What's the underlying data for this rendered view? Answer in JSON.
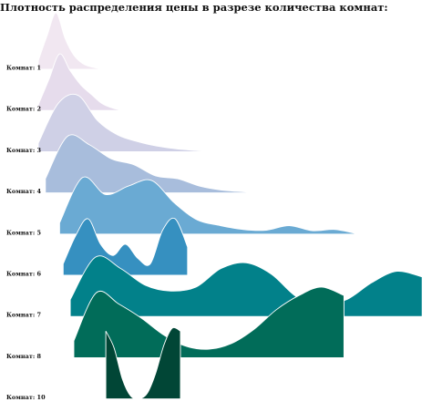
{
  "chart_data": {
    "type": "area",
    "title": "Плотность распределения цены в разрезе количества комнат:",
    "xlabel": "",
    "ylabel": "",
    "grid": false,
    "legend": "none",
    "series": [
      {
        "name": "Комнат: 1",
        "color": "#f1e7f1",
        "x_range": [
          0.0,
          1.0
        ],
        "density": [
          0.15,
          0.6,
          1.0,
          0.55,
          0.25,
          0.1,
          0.04,
          0.01,
          0.0
        ]
      },
      {
        "name": "Комнат: 2",
        "color": "#e6dcec",
        "x_range": [
          0.0,
          1.2
        ],
        "density": [
          0.1,
          0.55,
          1.0,
          0.7,
          0.45,
          0.28,
          0.12,
          0.04,
          0.0
        ]
      },
      {
        "name": "Комнат: 3",
        "color": "#cfd0e6",
        "x_range": [
          0.0,
          2.5
        ],
        "density": [
          0.15,
          0.85,
          1.0,
          0.55,
          0.3,
          0.18,
          0.1,
          0.05,
          0.02,
          0.0
        ]
      },
      {
        "name": "Комнат: 4",
        "color": "#a8bddc",
        "x_range": [
          0.1,
          3.2
        ],
        "density": [
          0.25,
          1.0,
          0.85,
          0.6,
          0.5,
          0.3,
          0.25,
          0.12,
          0.05,
          0.02,
          0.0
        ]
      },
      {
        "name": "Комнат: 5",
        "color": "#6aaad3",
        "x_range": [
          0.3,
          4.5
        ],
        "density": [
          0.2,
          1.0,
          0.7,
          0.85,
          0.95,
          0.55,
          0.25,
          0.15,
          0.08,
          0.07,
          0.15,
          0.06,
          0.08,
          0.0
        ]
      },
      {
        "name": "Комнат: 6",
        "color": "#3690c0",
        "x_range": [
          0.35,
          2.1
        ],
        "density": [
          0.2,
          0.7,
          1.0,
          0.55,
          0.35,
          0.55,
          0.3,
          0.2,
          0.8,
          1.0,
          0.5
        ]
      },
      {
        "name": "Комнат: 7",
        "color": "#02818a",
        "x_range": [
          0.45,
          5.4
        ],
        "density": [
          0.3,
          1.05,
          0.85,
          0.55,
          0.45,
          0.52,
          0.85,
          0.95,
          0.75,
          0.35,
          0.2,
          0.3,
          0.6,
          0.8,
          0.7
        ]
      },
      {
        "name": "Комнат: 8",
        "color": "#016c59",
        "x_range": [
          0.5,
          4.3
        ],
        "density": [
          0.3,
          1.15,
          0.95,
          0.7,
          0.4,
          0.2,
          0.15,
          0.25,
          0.5,
          0.85,
          1.1,
          1.25,
          1.1
        ]
      },
      {
        "name": "Комнат: 10",
        "color": "#014636",
        "x_range": [
          0.95,
          2.0
        ],
        "density": [
          1.2,
          0.9,
          0.35,
          0.05,
          0.0,
          0.1,
          0.45,
          0.95,
          1.25,
          1.2
        ]
      }
    ]
  }
}
